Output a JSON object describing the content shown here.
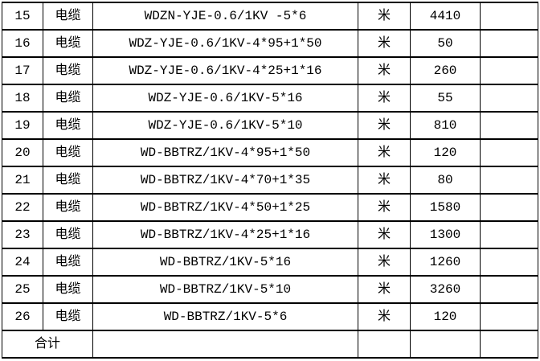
{
  "page": {
    "background_color": "#ffffff",
    "grid_color": "#000000",
    "text_color": "#000000"
  },
  "table": {
    "rows": [
      {
        "seq": "15",
        "name": "电缆",
        "spec": "WDZN-YJE-0.6/1KV -5*6",
        "unit": "米",
        "quantity": "4410",
        "remark": ""
      },
      {
        "seq": "16",
        "name": "电缆",
        "spec": "WDZ-YJE-0.6/1KV-4*95+1*50",
        "unit": "米",
        "quantity": "50",
        "remark": ""
      },
      {
        "seq": "17",
        "name": "电缆",
        "spec": "WDZ-YJE-0.6/1KV-4*25+1*16",
        "unit": "米",
        "quantity": "260",
        "remark": ""
      },
      {
        "seq": "18",
        "name": "电缆",
        "spec": "WDZ-YJE-0.6/1KV-5*16",
        "unit": "米",
        "quantity": "55",
        "remark": ""
      },
      {
        "seq": "19",
        "name": "电缆",
        "spec": "WDZ-YJE-0.6/1KV-5*10",
        "unit": "米",
        "quantity": "810",
        "remark": ""
      },
      {
        "seq": "20",
        "name": "电缆",
        "spec": "WD-BBTRZ/1KV-4*95+1*50",
        "unit": "米",
        "quantity": "120",
        "remark": ""
      },
      {
        "seq": "21",
        "name": "电缆",
        "spec": "WD-BBTRZ/1KV-4*70+1*35",
        "unit": "米",
        "quantity": "80",
        "remark": ""
      },
      {
        "seq": "22",
        "name": "电缆",
        "spec": "WD-BBTRZ/1KV-4*50+1*25",
        "unit": "米",
        "quantity": "1580",
        "remark": ""
      },
      {
        "seq": "23",
        "name": "电缆",
        "spec": "WD-BBTRZ/1KV-4*25+1*16",
        "unit": "米",
        "quantity": "1300",
        "remark": ""
      },
      {
        "seq": "24",
        "name": "电缆",
        "spec": "WD-BBTRZ/1KV-5*16",
        "unit": "米",
        "quantity": "1260",
        "remark": ""
      },
      {
        "seq": "25",
        "name": "电缆",
        "spec": "WD-BBTRZ/1KV-5*10",
        "unit": "米",
        "quantity": "3260",
        "remark": ""
      },
      {
        "seq": "26",
        "name": "电缆",
        "spec": "WD-BBTRZ/1KV-5*6",
        "unit": "米",
        "quantity": "120",
        "remark": ""
      }
    ],
    "footer": {
      "total_label": "合计",
      "spec": "",
      "unit": "",
      "quantity": "",
      "remark": ""
    }
  }
}
